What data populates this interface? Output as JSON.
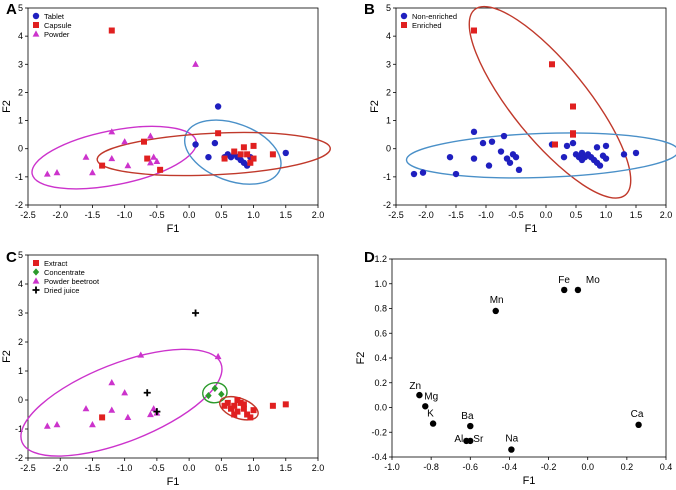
{
  "chart_data": [
    {
      "panel": "A",
      "type": "scatter",
      "xlabel": "F1",
      "ylabel": "F2",
      "xlim": [
        -2.5,
        2.0
      ],
      "ylim": [
        -2,
        5
      ],
      "xticks": [
        "-2.5",
        "-2.0",
        "-1.5",
        "-1.0",
        "-0.5",
        "0.0",
        "0.5",
        "1.0",
        "1.5",
        "2.0"
      ],
      "yticks": [
        "-2",
        "-1",
        "0",
        "1",
        "2",
        "3",
        "4",
        "5"
      ],
      "legend_position": "top-left",
      "series": [
        {
          "name": "Tablet",
          "marker": "circle",
          "color": "#1f1fbf",
          "points": [
            [
              0.1,
              0.15
            ],
            [
              0.45,
              1.5
            ],
            [
              0.55,
              -0.3
            ],
            [
              0.6,
              -0.2
            ],
            [
              0.65,
              -0.3
            ],
            [
              0.7,
              -0.2
            ],
            [
              0.75,
              -0.3
            ],
            [
              0.8,
              -0.4
            ],
            [
              0.85,
              -0.5
            ],
            [
              0.9,
              -0.6
            ],
            [
              0.95,
              -0.3
            ],
            [
              0.3,
              -0.3
            ],
            [
              1.5,
              -0.15
            ],
            [
              0.4,
              0.2
            ]
          ]
        },
        {
          "name": "Capsule",
          "marker": "square",
          "color": "#e02020",
          "points": [
            [
              -1.2,
              4.2
            ],
            [
              -0.7,
              0.25
            ],
            [
              -0.65,
              -0.35
            ],
            [
              -0.45,
              -0.75
            ],
            [
              -1.35,
              -0.6
            ],
            [
              0.45,
              0.55
            ],
            [
              0.55,
              -0.35
            ],
            [
              0.7,
              -0.1
            ],
            [
              0.8,
              -0.2
            ],
            [
              0.85,
              0.05
            ],
            [
              0.95,
              -0.5
            ],
            [
              1.0,
              -0.35
            ],
            [
              0.9,
              -0.2
            ],
            [
              1.3,
              -0.2
            ],
            [
              1.0,
              0.1
            ]
          ]
        },
        {
          "name": "Powder",
          "marker": "triangle",
          "color": "#cc33cc",
          "points": [
            [
              0.1,
              3.0
            ],
            [
              -2.2,
              -0.9
            ],
            [
              -2.05,
              -0.85
            ],
            [
              -1.6,
              -0.3
            ],
            [
              -1.5,
              -0.85
            ],
            [
              -1.2,
              0.6
            ],
            [
              -1.2,
              -0.35
            ],
            [
              -1.0,
              0.25
            ],
            [
              -0.95,
              -0.6
            ],
            [
              -0.6,
              -0.5
            ],
            [
              -0.55,
              -0.3
            ],
            [
              -0.5,
              -0.45
            ],
            [
              -0.6,
              0.45
            ]
          ]
        }
      ],
      "ellipses": [
        {
          "series": "Powder",
          "color": "#cc33cc"
        },
        {
          "series": "Tablet",
          "color": "#4a90c8"
        },
        {
          "series": "Capsule",
          "color": "#c0392b"
        }
      ]
    },
    {
      "panel": "B",
      "type": "scatter",
      "xlabel": "F1",
      "ylabel": "F2",
      "xlim": [
        -2.5,
        2.0
      ],
      "ylim": [
        -2,
        5
      ],
      "xticks": [
        "-2.5",
        "-2.0",
        "-1.5",
        "-1.0",
        "-0.5",
        "0.0",
        "0.5",
        "1.0",
        "1.5",
        "2.0"
      ],
      "yticks": [
        "-2",
        "-1",
        "0",
        "1",
        "2",
        "3",
        "4",
        "5"
      ],
      "legend_position": "top-left",
      "series": [
        {
          "name": "Non-enriched",
          "marker": "circle",
          "color": "#1f1fbf",
          "points": [
            [
              -2.2,
              -0.9
            ],
            [
              -2.05,
              -0.85
            ],
            [
              -1.6,
              -0.3
            ],
            [
              -1.5,
              -0.9
            ],
            [
              -1.2,
              0.6
            ],
            [
              -1.2,
              -0.35
            ],
            [
              -1.05,
              0.2
            ],
            [
              -0.95,
              -0.6
            ],
            [
              -0.9,
              0.25
            ],
            [
              -0.7,
              0.45
            ],
            [
              -0.65,
              -0.35
            ],
            [
              -0.6,
              -0.5
            ],
            [
              -0.55,
              -0.2
            ],
            [
              -0.5,
              -0.3
            ],
            [
              -0.45,
              -0.75
            ],
            [
              -0.75,
              -0.1
            ],
            [
              0.1,
              0.15
            ],
            [
              0.3,
              -0.3
            ],
            [
              0.35,
              0.1
            ],
            [
              0.45,
              0.2
            ],
            [
              0.5,
              -0.2
            ],
            [
              0.55,
              -0.3
            ],
            [
              0.6,
              -0.15
            ],
            [
              0.65,
              -0.3
            ],
            [
              0.7,
              -0.2
            ],
            [
              0.75,
              -0.3
            ],
            [
              0.8,
              -0.4
            ],
            [
              0.85,
              -0.5
            ],
            [
              0.9,
              -0.6
            ],
            [
              0.95,
              -0.25
            ],
            [
              0.85,
              0.05
            ],
            [
              1.0,
              -0.35
            ],
            [
              1.0,
              0.1
            ],
            [
              1.3,
              -0.2
            ],
            [
              1.5,
              -0.15
            ],
            [
              0.6,
              -0.4
            ]
          ]
        },
        {
          "name": "Enriched",
          "marker": "square",
          "color": "#e02020",
          "points": [
            [
              -1.2,
              4.2
            ],
            [
              0.1,
              3.0
            ],
            [
              0.45,
              1.5
            ],
            [
              0.45,
              0.5
            ],
            [
              0.45,
              0.55
            ],
            [
              0.15,
              0.15
            ]
          ]
        }
      ],
      "ellipses": [
        {
          "series": "Enriched",
          "color": "#c0392b"
        },
        {
          "series": "Non-enriched",
          "color": "#4a90c8"
        }
      ]
    },
    {
      "panel": "C",
      "type": "scatter",
      "xlabel": "F1",
      "ylabel": "F2",
      "xlim": [
        -2.5,
        2.0
      ],
      "ylim": [
        -2,
        5
      ],
      "xticks": [
        "-2.5",
        "-2.0",
        "-1.5",
        "-1.0",
        "-0.5",
        "0.0",
        "0.5",
        "1.0",
        "1.5",
        "2.0"
      ],
      "yticks": [
        "-2",
        "-1",
        "0",
        "1",
        "2",
        "3",
        "4",
        "5"
      ],
      "legend_position": "top-left",
      "series": [
        {
          "name": "Extract",
          "marker": "square",
          "color": "#e02020",
          "points": [
            [
              -1.35,
              -0.6
            ],
            [
              0.55,
              -0.2
            ],
            [
              0.6,
              -0.1
            ],
            [
              0.65,
              -0.3
            ],
            [
              0.7,
              -0.2
            ],
            [
              0.75,
              -0.4
            ],
            [
              0.8,
              -0.1
            ],
            [
              0.85,
              -0.3
            ],
            [
              0.9,
              -0.5
            ],
            [
              0.95,
              -0.6
            ],
            [
              1.0,
              -0.35
            ],
            [
              1.3,
              -0.2
            ],
            [
              1.5,
              -0.15
            ],
            [
              0.75,
              0.0
            ],
            [
              0.85,
              -0.15
            ],
            [
              0.7,
              -0.5
            ]
          ]
        },
        {
          "name": "Concentrate",
          "marker": "diamond",
          "color": "#2a9a2a",
          "points": [
            [
              0.3,
              0.15
            ],
            [
              0.4,
              0.4
            ],
            [
              0.5,
              0.2
            ]
          ]
        },
        {
          "name": "Powder beetroot",
          "marker": "triangle",
          "color": "#cc33cc",
          "points": [
            [
              -0.75,
              1.55
            ],
            [
              0.45,
              1.5
            ],
            [
              -2.2,
              -0.9
            ],
            [
              -2.05,
              -0.85
            ],
            [
              -1.6,
              -0.3
            ],
            [
              -1.5,
              -0.85
            ],
            [
              -1.2,
              0.6
            ],
            [
              -1.2,
              -0.35
            ],
            [
              -1.0,
              0.25
            ],
            [
              -0.95,
              -0.6
            ],
            [
              -0.6,
              -0.5
            ],
            [
              -0.55,
              -0.3
            ],
            [
              -0.5,
              -0.45
            ]
          ]
        },
        {
          "name": "Dried juice",
          "marker": "plus",
          "color": "#000000",
          "points": [
            [
              0.1,
              3.0
            ],
            [
              -0.65,
              0.25
            ],
            [
              -0.5,
              -0.4
            ]
          ]
        }
      ],
      "ellipses": [
        {
          "series": "Powder beetroot",
          "color": "#cc33cc"
        },
        {
          "series": "Concentrate",
          "color": "#2a9a2a"
        },
        {
          "series": "Extract",
          "color": "#c0392b"
        }
      ]
    },
    {
      "panel": "D",
      "type": "scatter",
      "xlabel": "F1",
      "ylabel": "F2",
      "xlim": [
        -1.0,
        0.4
      ],
      "ylim": [
        -0.4,
        1.2
      ],
      "xticks": [
        "-1.0",
        "-0.8",
        "-0.6",
        "-0.4",
        "-0.2",
        "0.0",
        "0.2",
        "0.4"
      ],
      "yticks": [
        "-0.4",
        "-0.2",
        "0.0",
        "0.2",
        "0.4",
        "0.6",
        "0.8",
        "1.0",
        "1.2"
      ],
      "points": [
        {
          "label": "Fe",
          "x": -0.12,
          "y": 0.95
        },
        {
          "label": "Mo",
          "x": -0.05,
          "y": 0.95
        },
        {
          "label": "Mn",
          "x": -0.47,
          "y": 0.78
        },
        {
          "label": "Zn",
          "x": -0.86,
          "y": 0.1
        },
        {
          "label": "Mg",
          "x": -0.83,
          "y": 0.01
        },
        {
          "label": "K",
          "x": -0.79,
          "y": -0.13
        },
        {
          "label": "Ba",
          "x": -0.6,
          "y": -0.15
        },
        {
          "label": "Al",
          "x": -0.62,
          "y": -0.27
        },
        {
          "label": "Sr",
          "x": -0.6,
          "y": -0.27
        },
        {
          "label": "Na",
          "x": -0.39,
          "y": -0.34
        },
        {
          "label": "Ca",
          "x": 0.26,
          "y": -0.14
        }
      ]
    }
  ]
}
